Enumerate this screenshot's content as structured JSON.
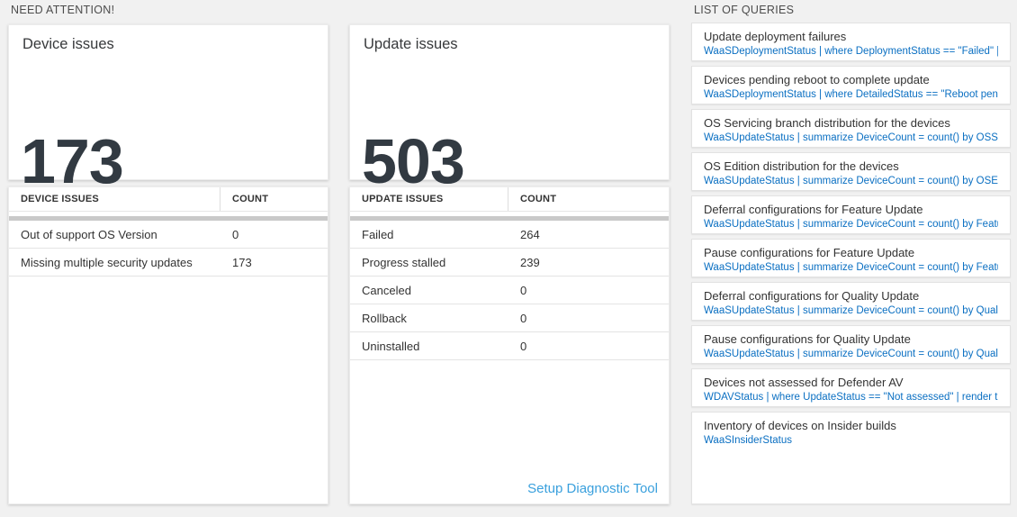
{
  "sections": {
    "need_attention": "NEED ATTENTION!",
    "list_of_queries": "LIST OF QUERIES"
  },
  "device_card": {
    "title": "Device issues",
    "count": "173"
  },
  "device_table": {
    "headers": {
      "name": "DEVICE ISSUES",
      "count": "COUNT"
    },
    "rows": [
      {
        "name": "Out of support OS Version",
        "count": "0"
      },
      {
        "name": "Missing multiple security updates",
        "count": "173"
      }
    ]
  },
  "update_card": {
    "title": "Update issues",
    "count": "503"
  },
  "update_table": {
    "headers": {
      "name": "UPDATE ISSUES",
      "count": "COUNT"
    },
    "rows": [
      {
        "name": "Failed",
        "count": "264"
      },
      {
        "name": "Progress stalled",
        "count": "239"
      },
      {
        "name": "Canceled",
        "count": "0"
      },
      {
        "name": "Rollback",
        "count": "0"
      },
      {
        "name": "Uninstalled",
        "count": "0"
      }
    ],
    "footer_link": "Setup Diagnostic Tool"
  },
  "queries": [
    {
      "title": "Update deployment failures",
      "query": "WaaSDeploymentStatus | where DeploymentStatus == \"Failed\" |..."
    },
    {
      "title": "Devices pending reboot to complete update",
      "query": "WaaSDeploymentStatus | where DetailedStatus == \"Reboot pend..."
    },
    {
      "title": "OS Servicing branch distribution for the devices",
      "query": "WaaSUpdateStatus | summarize DeviceCount = count() by OSSer..."
    },
    {
      "title": "OS Edition distribution for the devices",
      "query": "WaaSUpdateStatus | summarize DeviceCount = count() by OSEdit..."
    },
    {
      "title": "Deferral configurations for Feature Update",
      "query": "WaaSUpdateStatus | summarize DeviceCount = count() by Featur..."
    },
    {
      "title": "Pause configurations for Feature Update",
      "query": "WaaSUpdateStatus | summarize DeviceCount = count() by Featur..."
    },
    {
      "title": "Deferral configurations for Quality Update",
      "query": "WaaSUpdateStatus | summarize DeviceCount = count() by Qualit..."
    },
    {
      "title": "Pause configurations for Quality Update",
      "query": "WaaSUpdateStatus | summarize DeviceCount = count() by Qualit..."
    },
    {
      "title": "Devices not assessed for Defender AV",
      "query": "WDAVStatus | where UpdateStatus == \"Not assessed\" | render ta..."
    },
    {
      "title": "Inventory of devices on Insider builds",
      "query": "WaaSInsiderStatus"
    }
  ],
  "colors": {
    "page_bg": "#f1f1f1",
    "query_link_blue": "#0a6fc2",
    "setup_link_blue": "#3aa0dd",
    "big_number": "#323a42",
    "header_bar_gray": "#c9c9c9"
  }
}
